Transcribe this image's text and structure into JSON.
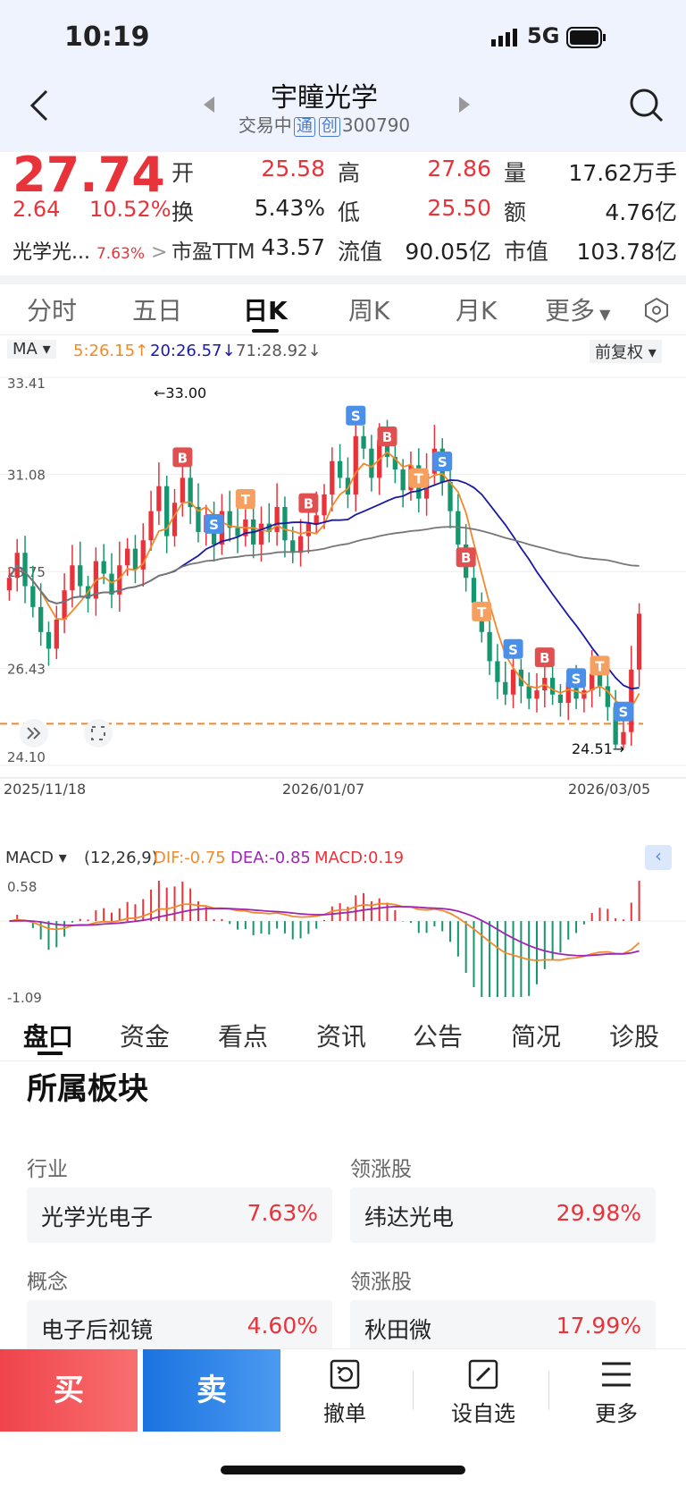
{
  "status": {
    "time": "10:19",
    "network": "5G"
  },
  "header": {
    "title": "宇瞳光学",
    "status": "交易中",
    "badge1": "通",
    "badge2": "创",
    "code": "300790"
  },
  "quote": {
    "price": "27.74",
    "change": "2.64",
    "pct": "10.52%",
    "sector_name": "光学光...",
    "sector_pct": "7.63%",
    "fields": [
      {
        "label": "开",
        "value": "25.58"
      },
      {
        "label": "高",
        "value": "27.86"
      },
      {
        "label": "量",
        "value": "17.62万手"
      },
      {
        "label": "换",
        "value": "5.43%"
      },
      {
        "label": "低",
        "value": "25.50"
      },
      {
        "label": "额",
        "value": "4.76亿"
      },
      {
        "label": "市盈TTM",
        "value": "43.57"
      },
      {
        "label": "流值",
        "value": "90.05亿"
      },
      {
        "label": "市值",
        "value": "103.78亿"
      }
    ]
  },
  "tabs": [
    "分时",
    "五日",
    "日K",
    "周K",
    "月K",
    "更多"
  ],
  "ma_bar": {
    "ma": "MA",
    "ma5": "5:26.15",
    "ma20": "20:26.57",
    "ma71": "71:28.92",
    "adjust": "前复权"
  },
  "colors": {
    "up": "#e8333a",
    "down": "#16966e",
    "ma5": "#f08a2c",
    "ma20": "#1a1aa6",
    "ma71": "#777777",
    "accent": "#1e7be8"
  },
  "chart_data": {
    "type": "candlestick",
    "x_labels": [
      "2025/11/18",
      "2026/01/07",
      "2026/03/05"
    ],
    "y_ticks": [
      "33.41",
      "31.08",
      "28.75",
      "26.43",
      "24.10"
    ],
    "annotations": {
      "high": "←33.00",
      "low": "24.51→"
    },
    "ylim": [
      24.1,
      33.41
    ],
    "reference_price": 25.1,
    "trade_markers": [
      "B",
      "S",
      "T"
    ],
    "closes": [
      28.6,
      29.2,
      28.4,
      27.9,
      27.3,
      26.9,
      27.6,
      28.3,
      28.9,
      28.4,
      28.1,
      29.0,
      28.7,
      28.2,
      28.9,
      29.3,
      28.8,
      29.5,
      30.2,
      30.8,
      29.6,
      30.4,
      31.0,
      30.3,
      29.7,
      30.1,
      29.4,
      30.2,
      29.8,
      29.6,
      30.0,
      29.4,
      29.9,
      29.7,
      30.3,
      29.5,
      29.2,
      29.6,
      29.9,
      30.1,
      30.6,
      31.4,
      31.0,
      30.6,
      32.0,
      31.7,
      31.0,
      31.9,
      31.5,
      31.2,
      30.7,
      31.3,
      30.5,
      31.1,
      31.7,
      30.9,
      30.2,
      29.4,
      28.6,
      28.0,
      27.3,
      26.6,
      26.1,
      25.8,
      26.4,
      26.0,
      25.7,
      25.9,
      26.2,
      25.8,
      25.6,
      26.1,
      25.7,
      25.9,
      26.3,
      26.0,
      25.5,
      24.6,
      24.9,
      26.4,
      27.74
    ]
  },
  "macd": {
    "label": "MACD",
    "params": "(12,26,9)",
    "dif": "DIF:-0.75",
    "dea": "DEA:-0.85",
    "macd": "MACD:0.19",
    "y_ticks": [
      "0.58",
      "-1.09"
    ]
  },
  "bottom_tabs": [
    "盘口",
    "资金",
    "看点",
    "资讯",
    "公告",
    "简况",
    "诊股"
  ],
  "sectors": {
    "title": "所属板块",
    "rows": [
      {
        "left_label": "行业",
        "left_name": "光学光电子",
        "left_pct": "7.63%",
        "right_label": "领涨股",
        "right_name": "纬达光电",
        "right_pct": "29.98%"
      },
      {
        "left_label": "概念",
        "left_name": "电子后视镜",
        "left_pct": "4.60%",
        "right_label": "领涨股",
        "right_name": "秋田微",
        "right_pct": "17.99%"
      }
    ]
  },
  "footer": {
    "buy": "买",
    "sell": "卖",
    "cancel": "撤单",
    "watch": "设自选",
    "more": "更多"
  }
}
